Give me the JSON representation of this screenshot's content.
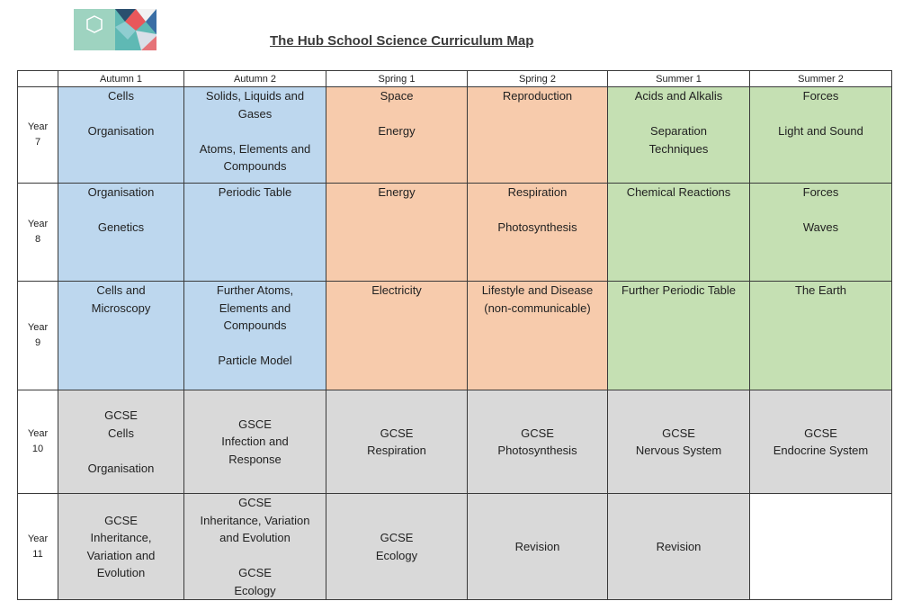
{
  "header": {
    "title": "The Hub School Science Curriculum Map"
  },
  "colors": {
    "autumn": "#bdd7ee",
    "spring": "#f7cbac",
    "summer": "#c5e0b3",
    "gcse": "#d9d9d9"
  },
  "columns": [
    "Autumn 1",
    "Autumn 2",
    "Spring 1",
    "Spring 2",
    "Summer 1",
    "Summer 2"
  ],
  "rows": [
    {
      "year_label": "Year",
      "year_num": "7",
      "cells": [
        {
          "lines": [
            "Cells",
            "",
            "Organisation"
          ]
        },
        {
          "lines": [
            "Solids, Liquids and",
            "Gases",
            "",
            "Atoms, Elements and",
            "Compounds"
          ]
        },
        {
          "lines": [
            "Space",
            "",
            "Energy"
          ]
        },
        {
          "lines": [
            "Reproduction"
          ]
        },
        {
          "lines": [
            "Acids and Alkalis",
            "",
            "Separation",
            "Techniques"
          ]
        },
        {
          "lines": [
            "Forces",
            "",
            "Light and Sound"
          ]
        }
      ]
    },
    {
      "year_label": "Year",
      "year_num": "8",
      "cells": [
        {
          "lines": [
            "Organisation",
            "",
            "Genetics"
          ]
        },
        {
          "lines": [
            "Periodic Table"
          ]
        },
        {
          "lines": [
            "Energy"
          ]
        },
        {
          "lines": [
            "Respiration",
            "",
            "Photosynthesis"
          ]
        },
        {
          "lines": [
            "Chemical Reactions"
          ]
        },
        {
          "lines": [
            "Forces",
            "",
            "Waves"
          ]
        }
      ]
    },
    {
      "year_label": "Year",
      "year_num": "9",
      "cells": [
        {
          "lines": [
            "Cells and",
            "Microscopy"
          ]
        },
        {
          "lines": [
            "Further Atoms,",
            "Elements and",
            "Compounds",
            "",
            "Particle Model"
          ]
        },
        {
          "lines": [
            "Electricity"
          ]
        },
        {
          "lines": [
            "Lifestyle and Disease",
            "(non-communicable)"
          ]
        },
        {
          "lines": [
            "Further Periodic Table"
          ]
        },
        {
          "lines": [
            "The Earth"
          ]
        }
      ]
    },
    {
      "year_label": "Year",
      "year_num": "10",
      "cells": [
        {
          "lines": [
            "GCSE",
            "Cells",
            "",
            "Organisation"
          ]
        },
        {
          "lines": [
            "GSCE",
            "Infection and",
            "Response"
          ]
        },
        {
          "lines": [
            "GCSE",
            "Respiration"
          ]
        },
        {
          "lines": [
            "GCSE",
            "Photosynthesis"
          ]
        },
        {
          "lines": [
            "GCSE",
            "Nervous System"
          ]
        },
        {
          "lines": [
            "GCSE",
            "Endocrine System"
          ]
        }
      ]
    },
    {
      "year_label": "Year",
      "year_num": "11",
      "cells": [
        {
          "lines": [
            "GCSE",
            "Inheritance,",
            "Variation and",
            "Evolution"
          ]
        },
        {
          "lines": [
            "GCSE",
            "Inheritance, Variation",
            "and Evolution",
            "",
            "GCSE",
            "Ecology"
          ]
        },
        {
          "lines": [
            "GCSE",
            "Ecology"
          ]
        },
        {
          "lines": [
            "Revision"
          ]
        },
        {
          "lines": [
            "Revision"
          ]
        },
        {
          "lines": []
        }
      ]
    }
  ]
}
